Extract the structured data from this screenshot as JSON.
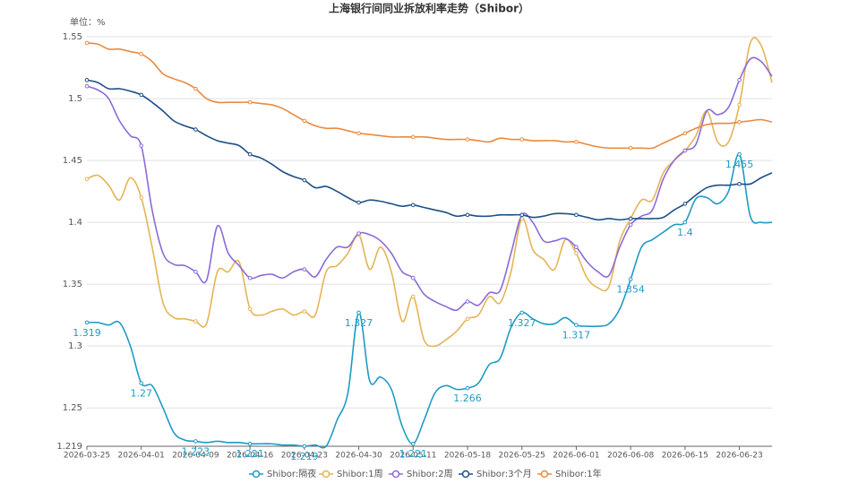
{
  "chart_data": {
    "type": "line",
    "title": "上海银行间同业拆放利率走势（Shibor）",
    "y_unit": "单位：%",
    "categories": [
      "2026-03-25",
      null,
      null,
      null,
      null,
      "2026-04-01",
      null,
      null,
      null,
      null,
      "2026-04-09",
      null,
      null,
      null,
      null,
      "2026-04-16",
      null,
      null,
      null,
      null,
      "2026-04-23",
      null,
      null,
      null,
      null,
      "2026-04-30",
      null,
      null,
      null,
      null,
      "2026-05-11",
      null,
      null,
      null,
      null,
      "2026-05-18",
      null,
      null,
      null,
      null,
      "2026-05-25",
      null,
      null,
      null,
      null,
      "2026-06-01",
      null,
      null,
      null,
      null,
      "2026-06-08",
      null,
      null,
      null,
      null,
      "2026-06-15",
      null,
      null,
      null,
      null,
      "2026-06-23",
      null,
      null,
      null
    ],
    "ylim": [
      1.219,
      1.55
    ],
    "yticks": [
      1.219,
      1.25,
      1.3,
      1.35,
      1.4,
      1.45,
      1.5,
      1.55
    ],
    "grid": true,
    "legend": "bottom",
    "series": [
      {
        "name": "Shibor:隔夜",
        "color": "#1f9bc4",
        "data_labels": true,
        "values": [
          1.319,
          1.319,
          1.317,
          1.319,
          1.3,
          1.27,
          1.268,
          1.25,
          1.23,
          1.224,
          1.223,
          1.222,
          1.223,
          1.222,
          1.222,
          1.221,
          1.221,
          1.221,
          1.22,
          1.22,
          1.219,
          1.22,
          1.219,
          1.24,
          1.262,
          1.327,
          1.272,
          1.275,
          1.265,
          1.235,
          1.221,
          1.24,
          1.262,
          1.268,
          1.265,
          1.266,
          1.27,
          1.285,
          1.29,
          1.315,
          1.327,
          1.322,
          1.318,
          1.318,
          1.323,
          1.317,
          1.316,
          1.316,
          1.318,
          1.33,
          1.354,
          1.38,
          1.386,
          1.392,
          1.398,
          1.4,
          1.419,
          1.42,
          1.415,
          1.425,
          1.455,
          1.405,
          1.4,
          1.4
        ]
      },
      {
        "name": "Shibor:1周",
        "color": "#e5b455",
        "values": [
          1.435,
          1.438,
          1.43,
          1.418,
          1.436,
          1.42,
          1.38,
          1.335,
          1.323,
          1.322,
          1.32,
          1.318,
          1.36,
          1.36,
          1.368,
          1.33,
          1.325,
          1.328,
          1.33,
          1.325,
          1.328,
          1.325,
          1.36,
          1.365,
          1.375,
          1.39,
          1.362,
          1.38,
          1.36,
          1.32,
          1.34,
          1.305,
          1.3,
          1.305,
          1.312,
          1.322,
          1.325,
          1.34,
          1.335,
          1.36,
          1.403,
          1.378,
          1.37,
          1.362,
          1.386,
          1.375,
          1.355,
          1.347,
          1.348,
          1.385,
          1.403,
          1.418,
          1.418,
          1.44,
          1.45,
          1.458,
          1.47,
          1.49,
          1.465,
          1.465,
          1.495,
          1.545,
          1.543,
          1.513
        ]
      },
      {
        "name": "Shibor:2周",
        "color": "#8c6bd8",
        "values": [
          1.51,
          1.507,
          1.5,
          1.482,
          1.47,
          1.462,
          1.41,
          1.375,
          1.366,
          1.365,
          1.36,
          1.353,
          1.397,
          1.375,
          1.365,
          1.355,
          1.357,
          1.358,
          1.355,
          1.36,
          1.362,
          1.356,
          1.37,
          1.38,
          1.38,
          1.391,
          1.39,
          1.385,
          1.375,
          1.36,
          1.355,
          1.342,
          1.336,
          1.332,
          1.329,
          1.336,
          1.333,
          1.343,
          1.345,
          1.375,
          1.406,
          1.4,
          1.385,
          1.385,
          1.387,
          1.38,
          1.368,
          1.36,
          1.357,
          1.38,
          1.398,
          1.405,
          1.41,
          1.435,
          1.45,
          1.458,
          1.463,
          1.49,
          1.487,
          1.493,
          1.515,
          1.532,
          1.53,
          1.518
        ]
      },
      {
        "name": "Shibor:3个月",
        "color": "#1d4f86",
        "values": [
          1.515,
          1.513,
          1.508,
          1.508,
          1.506,
          1.503,
          1.497,
          1.49,
          1.482,
          1.478,
          1.475,
          1.47,
          1.466,
          1.464,
          1.462,
          1.455,
          1.452,
          1.447,
          1.441,
          1.437,
          1.434,
          1.428,
          1.429,
          1.425,
          1.42,
          1.416,
          1.418,
          1.417,
          1.415,
          1.413,
          1.414,
          1.412,
          1.41,
          1.408,
          1.405,
          1.406,
          1.405,
          1.405,
          1.406,
          1.406,
          1.406,
          1.404,
          1.405,
          1.407,
          1.407,
          1.406,
          1.404,
          1.402,
          1.403,
          1.402,
          1.403,
          1.403,
          1.403,
          1.404,
          1.41,
          1.415,
          1.422,
          1.428,
          1.43,
          1.43,
          1.431,
          1.431,
          1.436,
          1.44
        ]
      },
      {
        "name": "Shibor:1年",
        "color": "#ea8a3e",
        "values": [
          1.545,
          1.544,
          1.54,
          1.54,
          1.538,
          1.536,
          1.53,
          1.52,
          1.516,
          1.513,
          1.508,
          1.5,
          1.497,
          1.497,
          1.497,
          1.497,
          1.496,
          1.495,
          1.492,
          1.487,
          1.482,
          1.478,
          1.476,
          1.476,
          1.474,
          1.472,
          1.471,
          1.47,
          1.469,
          1.469,
          1.469,
          1.469,
          1.468,
          1.467,
          1.467,
          1.467,
          1.466,
          1.465,
          1.468,
          1.467,
          1.467,
          1.466,
          1.466,
          1.466,
          1.465,
          1.465,
          1.463,
          1.461,
          1.46,
          1.46,
          1.46,
          1.46,
          1.46,
          1.464,
          1.468,
          1.472,
          1.476,
          1.479,
          1.48,
          1.48,
          1.481,
          1.482,
          1.483,
          1.481
        ]
      }
    ]
  }
}
